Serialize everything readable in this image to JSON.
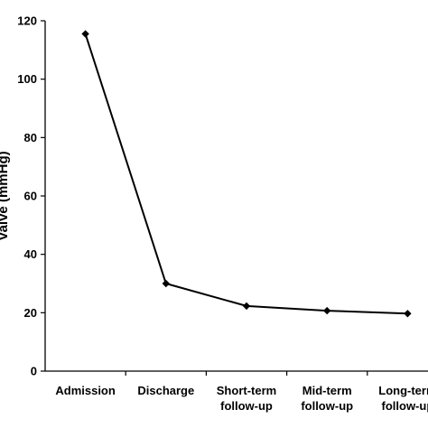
{
  "chart_data": {
    "type": "line",
    "title": "",
    "xlabel": "",
    "ylabel": "Valve (mmHg)",
    "categories": [
      [
        "Admission"
      ],
      [
        "Discharge"
      ],
      [
        "Short-term",
        "follow-up"
      ],
      [
        "Mid-term",
        "follow-up"
      ],
      [
        "Long-term",
        "follow-up"
      ]
    ],
    "series": [
      {
        "values": [
          115.5,
          30,
          22.3,
          20.7,
          19.7
        ],
        "color": "#000000",
        "marker": "diamond"
      }
    ],
    "ylim": [
      0,
      120
    ],
    "yticks": [
      "0",
      "20",
      "40",
      "60",
      "80",
      "100",
      "120"
    ],
    "grid": false,
    "legend": "none"
  }
}
